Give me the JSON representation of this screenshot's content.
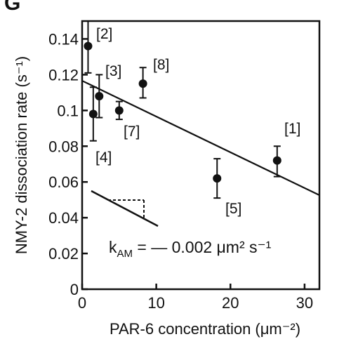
{
  "chart_data": {
    "type": "scatter",
    "panel_letter": "G",
    "xlabel": "PAR-6 concentration (μm⁻²)",
    "ylabel": "NMY-2 dissociation rate (s⁻¹)",
    "xlim": [
      0,
      32
    ],
    "ylim": [
      0,
      0.15
    ],
    "xticks": [
      0,
      10,
      20,
      30
    ],
    "xtick_labels": [
      "0",
      "10",
      "20",
      "30"
    ],
    "yticks": [
      0,
      0.02,
      0.04,
      0.06,
      0.08,
      0.1,
      0.12,
      0.14
    ],
    "ytick_labels": [
      "0",
      "0.02",
      "0.04",
      "0.06",
      "0.08",
      "0.1",
      "0.12",
      "0.14"
    ],
    "grid": false,
    "points": [
      {
        "label": "[2]",
        "x": 0.8,
        "y": 0.136,
        "err_low": 0.121,
        "err_high": 0.15
      },
      {
        "label": "[3]",
        "x": 2.3,
        "y": 0.108,
        "err_low": 0.096,
        "err_high": 0.12
      },
      {
        "label": "[4]",
        "x": 1.5,
        "y": 0.098,
        "err_low": 0.083,
        "err_high": 0.113
      },
      {
        "label": "[7]",
        "x": 5.0,
        "y": 0.1,
        "err_low": 0.095,
        "err_high": 0.105
      },
      {
        "label": "[8]",
        "x": 8.2,
        "y": 0.115,
        "err_low": 0.107,
        "err_high": 0.124
      },
      {
        "label": "[5]",
        "x": 18.2,
        "y": 0.062,
        "err_low": 0.051,
        "err_high": 0.073
      },
      {
        "label": "[1]",
        "x": 26.3,
        "y": 0.072,
        "err_low": 0.063,
        "err_high": 0.08
      }
    ],
    "fit_line": {
      "x": [
        0,
        32
      ],
      "y": [
        0.1166,
        0.0526
      ]
    },
    "slope_annotation": {
      "text_prefix": "k",
      "text_subscript": "AM",
      "text_suffix": " = — 0.002 μm² s⁻¹"
    }
  }
}
